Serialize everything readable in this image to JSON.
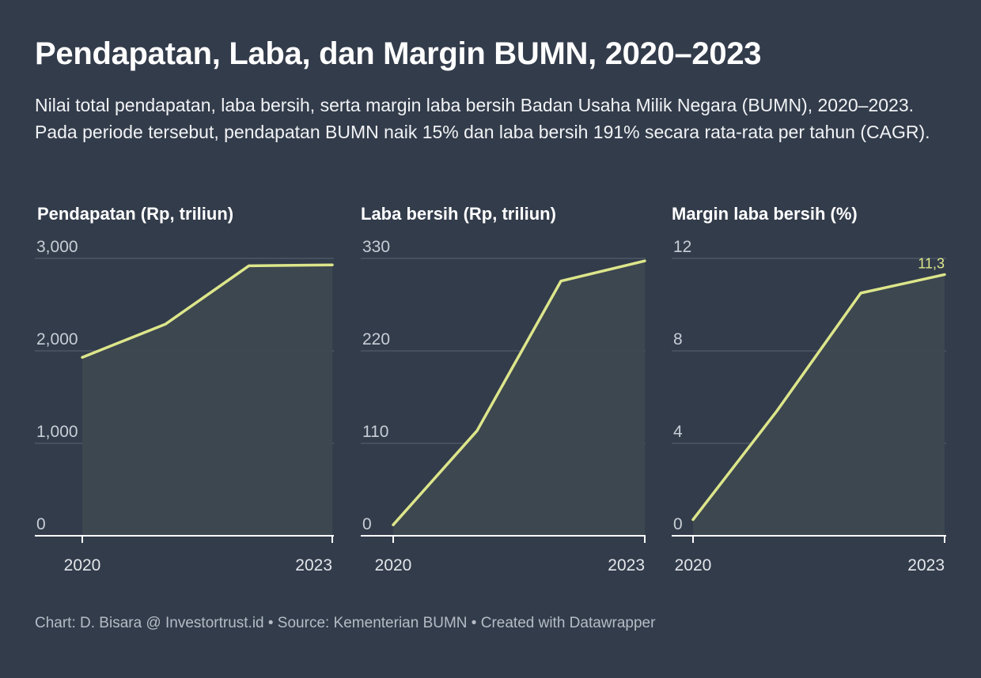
{
  "header": {
    "title": "Pendapatan, Laba, dan Margin BUMN, 2020–2023",
    "subtitle": "Nilai total pendapatan, laba bersih, serta margin laba bersih Badan Usaha Milik Negara (BUMN), 2020–2023. Pada periode tersebut, pendapatan BUMN naik 15% dan laba bersih 191% secara rata-rata per tahun (CAGR)."
  },
  "colors": {
    "background": "#333c4b",
    "line": "#dde68a",
    "area": "#3e4850",
    "grid": "#4d5664",
    "axis": "#ffffff"
  },
  "footer": {
    "text": "Chart: D. Bisara @ Investortrust.id • Source: Kementerian BUMN • Created with Datawrapper"
  },
  "chart_data": [
    {
      "type": "area",
      "title": "Pendapatan (Rp, triliun)",
      "x": [
        2020,
        2021,
        2022,
        2023
      ],
      "x_tick_labels": [
        "2020",
        "2023"
      ],
      "y_ticks": [
        0,
        1000,
        2000,
        3000
      ],
      "y_tick_labels": [
        "0",
        "1,000",
        "2,000",
        "3,000"
      ],
      "ylim": [
        0,
        3000
      ],
      "series": [
        {
          "values": [
            1930,
            2290,
            2920,
            2930
          ]
        }
      ],
      "grid": true
    },
    {
      "type": "area",
      "title": "Laba bersih (Rp, triliun)",
      "x": [
        2020,
        2021,
        2022,
        2023
      ],
      "x_tick_labels": [
        "2020",
        "2023"
      ],
      "y_ticks": [
        0,
        110,
        220,
        330
      ],
      "y_tick_labels": [
        "0",
        "110",
        "220",
        "330"
      ],
      "ylim": [
        0,
        330
      ],
      "series": [
        {
          "values": [
            13,
            125,
            303,
            327
          ]
        }
      ],
      "grid": true
    },
    {
      "type": "area",
      "title": "Margin laba bersih (%)",
      "x": [
        2020,
        2021,
        2022,
        2023
      ],
      "x_tick_labels": [
        "2020",
        "2023"
      ],
      "y_ticks": [
        0,
        4,
        8,
        12
      ],
      "y_tick_labels": [
        "0",
        "4",
        "8",
        "12"
      ],
      "ylim": [
        0,
        12
      ],
      "series": [
        {
          "values": [
            0.7,
            5.4,
            10.5,
            11.3
          ]
        }
      ],
      "annotations": [
        {
          "point_index": 3,
          "text": "11,3"
        }
      ],
      "grid": true
    }
  ]
}
